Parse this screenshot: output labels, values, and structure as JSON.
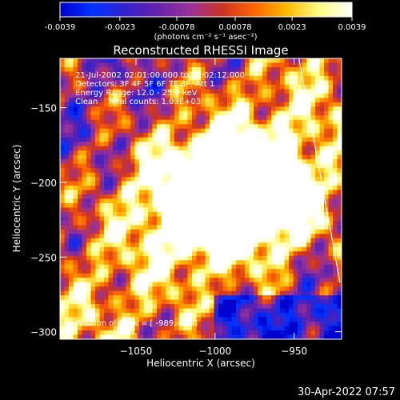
{
  "colorbar": {
    "tick_labels": [
      "-0.0039",
      "-0.0023",
      "-0.00078",
      "0.00078",
      "0.0023",
      "0.0039"
    ],
    "ticks": [
      -0.0039,
      -0.0023,
      -0.00078,
      0.00078,
      0.0023,
      0.0039
    ],
    "range": [
      -0.0039,
      0.0039
    ],
    "units": "(photons cm⁻² s⁻¹ asec⁻²)",
    "colors": [
      "#0000cc",
      "#0033ff",
      "#3322cc",
      "#6622aa",
      "#993399",
      "#cc3322",
      "#ff6600",
      "#ffbb00",
      "#ffff88",
      "#ffffff"
    ]
  },
  "chart_data": {
    "type": "heatmap",
    "title": "Reconstructed RHESSI Image",
    "xlabel": "Heliocentric X (arcsec)",
    "ylabel": "Heliocentric Y (arcsec)",
    "xlim": [
      -1098,
      -920
    ],
    "ylim": [
      -305,
      -117
    ],
    "x_ticks": [
      -1050,
      -1000,
      -950
    ],
    "y_ticks": [
      -150,
      -200,
      -250,
      -300
    ],
    "peak": [
      -989,
      -209
    ],
    "limb_line": [
      [
        -947,
        -117
      ],
      [
        -921,
        -267
      ]
    ]
  },
  "info": {
    "time": "21-Jul-2002 02:01:00.000 to 02:02:12.000",
    "detectors": "Detectors: 3F 4F 5F 6F 7F 8F, Att 1",
    "energy": "Energy Range: 12.0 - 25.0 keV",
    "method_counts": "Clean    Total counts: 1.03E+03",
    "peak_text": "Position of Peak = [ -989,-209]"
  },
  "footer": {
    "date": "30-Apr-2022 07:57"
  }
}
